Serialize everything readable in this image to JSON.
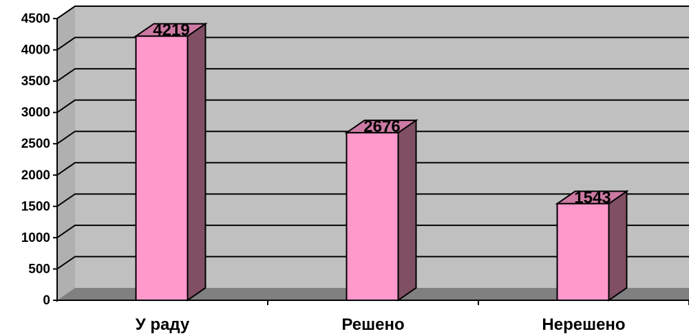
{
  "chart_data": {
    "type": "bar",
    "categories": [
      "У раду",
      "Решено",
      "Нерешено"
    ],
    "values": [
      4219,
      2676,
      1543
    ],
    "data_labels": [
      "4219",
      "2676",
      "1543"
    ],
    "ylim": [
      0,
      4500
    ],
    "y_ticks": [
      "0",
      "500",
      "1000",
      "1500",
      "2000",
      "2500",
      "3000",
      "3500",
      "4000",
      "4500"
    ],
    "grid": true,
    "legend": false,
    "style": "3d-column"
  },
  "colors": {
    "bar_front": "#ff99cc",
    "bar_side": "#804f63",
    "bar_top": "#cc7aa3",
    "wall": "#c0c0c0",
    "floor": "#808080",
    "gridline": "#000000"
  }
}
